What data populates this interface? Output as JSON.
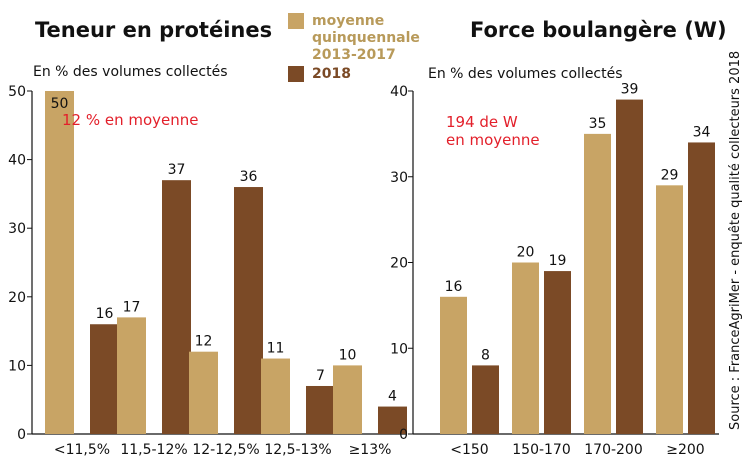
{
  "colors": {
    "series_avg": "#c8a465",
    "series_2018": "#7b4a26",
    "annotation": "#e3202b",
    "legend_avg_text": "#b89a5a",
    "legend_2018_text": "#7b4a26"
  },
  "legend": {
    "avg_label_lines": [
      "moyenne",
      "quinquennale",
      "2013-2017"
    ],
    "label_2018": "2018"
  },
  "source": "Source : FranceAgriMer - enquête qualité collecteurs 2018",
  "chart_data": [
    {
      "type": "bar",
      "title": "Teneur en protéines",
      "ylabel": "En % des volumes collectés",
      "annotation": [
        "12 % en moyenne"
      ],
      "categories": [
        "<11,5%",
        "11,5-12%",
        "12-12,5%",
        "12,5-13%",
        "≥13%"
      ],
      "ylim": [
        0,
        50
      ],
      "yticks": [
        0,
        10,
        20,
        30,
        40,
        50
      ],
      "series": [
        {
          "name": "moyenne quinquennale 2013-2017",
          "values": [
            50,
            17,
            12,
            11,
            10
          ]
        },
        {
          "name": "2018",
          "values": [
            16,
            37,
            36,
            7,
            4
          ]
        }
      ]
    },
    {
      "type": "bar",
      "title": "Force boulangère (W)",
      "ylabel": "En % des volumes collectés",
      "annotation": [
        "194 de W",
        "en moyenne"
      ],
      "categories": [
        "<150",
        "150-170",
        "170-200",
        "≥200"
      ],
      "ylim": [
        0,
        40
      ],
      "yticks": [
        0,
        10,
        20,
        30,
        40
      ],
      "series": [
        {
          "name": "moyenne quinquennale 2013-2017",
          "values": [
            16,
            20,
            35,
            29
          ]
        },
        {
          "name": "2018",
          "values": [
            8,
            19,
            39,
            34
          ]
        }
      ]
    }
  ]
}
